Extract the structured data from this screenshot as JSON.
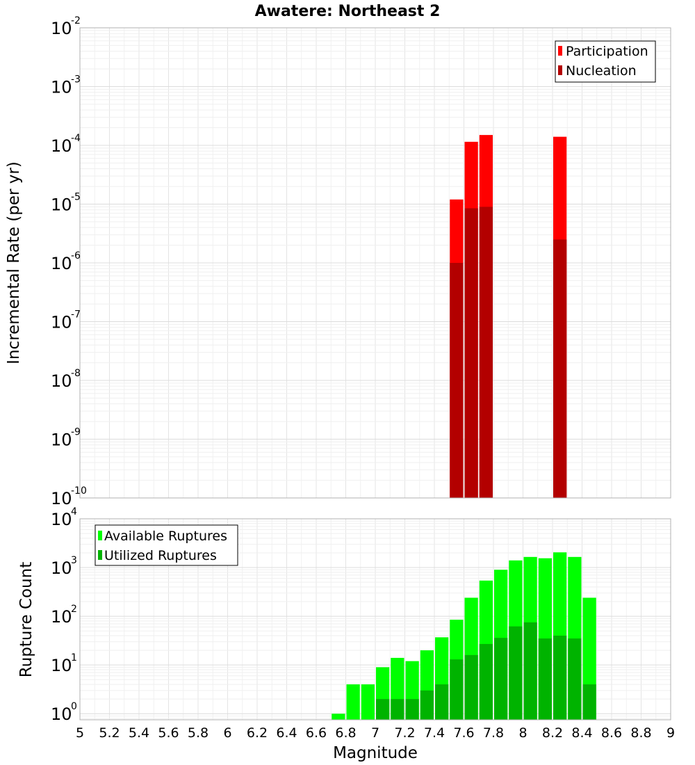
{
  "title": "Awatere: Northeast 2",
  "xlabel": "Magnitude",
  "x_ticks": [
    "5",
    "5.2",
    "5.4",
    "5.6",
    "5.8",
    "6",
    "6.2",
    "6.4",
    "6.6",
    "6.8",
    "7",
    "7.2",
    "7.4",
    "7.6",
    "7.8",
    "8",
    "8.2",
    "8.4",
    "8.6",
    "8.8",
    "9"
  ],
  "chart_data": [
    {
      "type": "bar",
      "ylabel": "Incremental Rate (per yr)",
      "xlim": [
        5,
        9
      ],
      "ylim": [
        1e-10,
        0.01
      ],
      "yscale": "log",
      "y_ticks": [
        {
          "base": "10",
          "exp": "-2"
        },
        {
          "base": "10",
          "exp": "-3"
        },
        {
          "base": "10",
          "exp": "-4"
        },
        {
          "base": "10",
          "exp": "-5"
        },
        {
          "base": "10",
          "exp": "-6"
        },
        {
          "base": "10",
          "exp": "-7"
        },
        {
          "base": "10",
          "exp": "-8"
        },
        {
          "base": "10",
          "exp": "-9"
        },
        {
          "base": "10",
          "exp": "-10"
        }
      ],
      "grid": true,
      "legend_position": "top-right",
      "bin_width": 0.1,
      "x": [
        7.55,
        7.65,
        7.75,
        8.25
      ],
      "series": [
        {
          "name": "Participation",
          "color": "#ff0000",
          "values": [
            1.2e-05,
            0.000115,
            0.00015,
            0.00014
          ]
        },
        {
          "name": "Nucleation",
          "color": "#b30000",
          "values": [
            1e-06,
            8.5e-06,
            9e-06,
            2.5e-06
          ]
        }
      ]
    },
    {
      "type": "bar",
      "ylabel": "Rupture Count",
      "xlim": [
        5,
        9
      ],
      "ylim": [
        0.75,
        10000
      ],
      "yscale": "log",
      "y_ticks": [
        {
          "base": "10",
          "exp": "4"
        },
        {
          "base": "10",
          "exp": "3"
        },
        {
          "base": "10",
          "exp": "2"
        },
        {
          "base": "10",
          "exp": "1"
        },
        {
          "base": "10",
          "exp": "0"
        }
      ],
      "grid": true,
      "legend_position": "top-left",
      "bin_width": 0.1,
      "x": [
        6.75,
        6.85,
        6.95,
        7.05,
        7.15,
        7.25,
        7.35,
        7.45,
        7.55,
        7.65,
        7.75,
        7.85,
        7.95,
        8.05,
        8.15,
        8.25,
        8.35,
        8.45
      ],
      "series": [
        {
          "name": "Available Ruptures",
          "color": "#00ff00",
          "values": [
            1,
            4,
            4,
            9,
            14,
            12,
            20,
            37,
            85,
            240,
            540,
            900,
            1400,
            1650,
            1550,
            2050,
            1650,
            240
          ]
        },
        {
          "name": "Utilized Ruptures",
          "color": "#00b300",
          "values": [
            0,
            0,
            0,
            2,
            2,
            2,
            3,
            4,
            13,
            16,
            27,
            36,
            62,
            75,
            35,
            40,
            35,
            4
          ]
        }
      ]
    }
  ]
}
